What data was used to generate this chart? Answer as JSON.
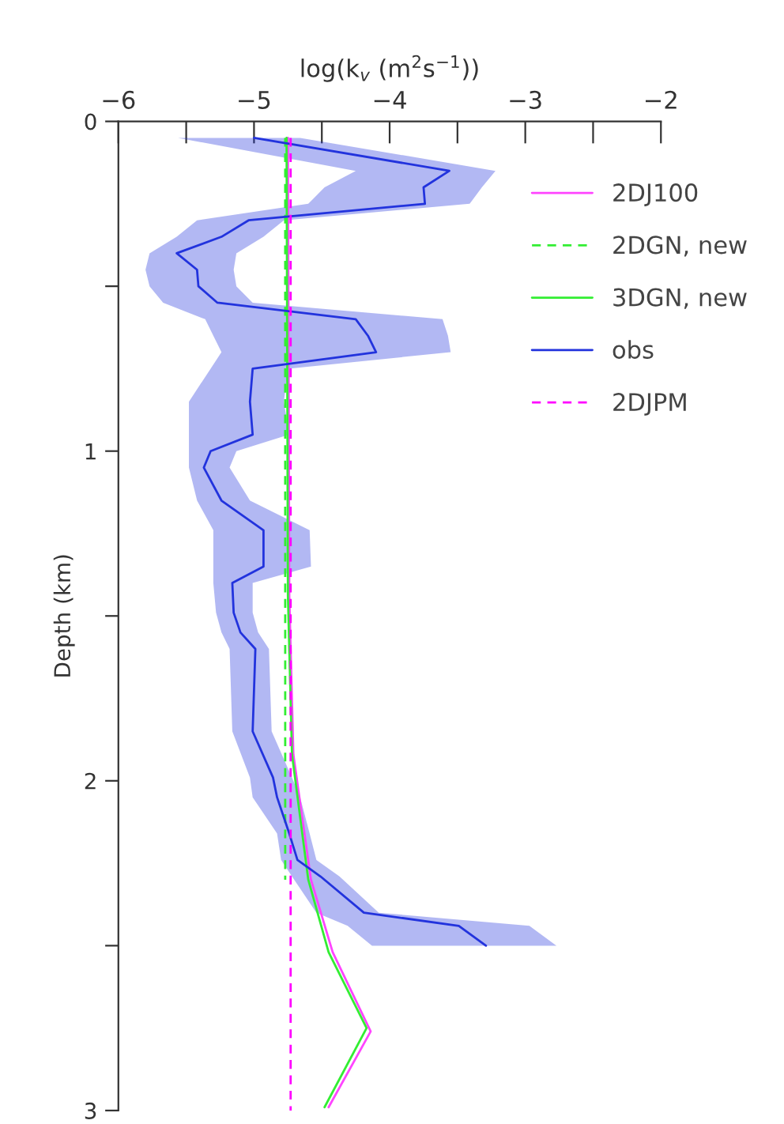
{
  "chart_data": {
    "type": "line",
    "orientation": "horizontal",
    "xlabel": "log(k$_{v}$ (m$^{2}$s$^{−1}$))",
    "ylabel": "Depth (km)",
    "xlim": [
      -6,
      -2
    ],
    "xticks": [
      -6,
      {
        "value": -5.5,
        "label": null
      },
      -5,
      {
        "value": -4.5,
        "label": null
      },
      -4,
      {
        "value": -3.5,
        "label": null
      },
      -3,
      {
        "value": -2.5,
        "label": null
      },
      -2
    ],
    "ylim": [
      3,
      0
    ],
    "yticks": [
      0,
      {
        "value": 0.5,
        "label": null
      },
      1,
      {
        "value": 1.5,
        "label": null
      },
      2,
      {
        "value": 2.5,
        "label": null
      },
      3
    ],
    "grid": false,
    "legend": "right",
    "series": [
      {
        "name": "2DJ100",
        "color": "#ff44ff",
        "line_style": "solid",
        "values": [
          -4.75,
          -4.74,
          -4.71,
          -4.58,
          -4.42,
          -4.14,
          -4.45
        ],
        "x": [
          0.05,
          1.44,
          1.92,
          2.3,
          2.52,
          2.76,
          2.99
        ]
      },
      {
        "name": "2DGN, new",
        "color": "#33ee33",
        "line_style": "dashed",
        "values": [
          -4.77,
          -4.77
        ],
        "x": [
          0.05,
          2.3
        ]
      },
      {
        "name": "3DGN, new",
        "color": "#33ee33",
        "line_style": "solid",
        "values": [
          -4.76,
          -4.75,
          -4.72,
          -4.6,
          -4.45,
          -4.17,
          -4.48
        ],
        "x": [
          0.05,
          1.44,
          1.92,
          2.3,
          2.52,
          2.75,
          2.99
        ]
      },
      {
        "name": "obs",
        "color": "#2233dd",
        "line_style": "solid",
        "values": [
          -5.0,
          -3.56,
          -3.75,
          -3.74,
          -5.04,
          -5.24,
          -5.57,
          -5.42,
          -5.41,
          -5.27,
          -4.25,
          -4.16,
          -4.1,
          -5.01,
          -5.03,
          -5.01,
          -5.32,
          -5.37,
          -5.24,
          -4.93,
          -4.93,
          -5.16,
          -5.15,
          -5.1,
          -4.99,
          -5.01,
          -4.86,
          -4.83,
          -4.74,
          -4.68,
          -4.51,
          -4.19,
          -3.49,
          -3.29
        ],
        "x": [
          0.05,
          0.15,
          0.2,
          0.25,
          0.3,
          0.35,
          0.4,
          0.45,
          0.5,
          0.55,
          0.6,
          0.65,
          0.7,
          0.75,
          0.85,
          0.95,
          1.0,
          1.05,
          1.15,
          1.24,
          1.35,
          1.4,
          1.49,
          1.55,
          1.6,
          1.85,
          1.99,
          2.05,
          2.16,
          2.24,
          2.29,
          2.4,
          2.44,
          2.5
        ],
        "lower": [
          -5.56,
          -4.25,
          -4.48,
          -4.6,
          -5.42,
          -5.57,
          -5.77,
          -5.8,
          -5.77,
          -5.67,
          -5.36,
          -5.3,
          -5.24,
          -5.32,
          -5.48,
          -5.48,
          -5.48,
          -5.48,
          -5.42,
          -5.3,
          -5.3,
          -5.3,
          -5.28,
          -5.24,
          -5.18,
          -5.16,
          -5.03,
          -5.01,
          -4.83,
          -4.8,
          -4.72,
          -4.54,
          -4.31,
          -4.13
        ],
        "upper": [
          -4.66,
          -3.22,
          -3.32,
          -3.41,
          -4.78,
          -4.93,
          -5.13,
          -5.15,
          -5.13,
          -5.01,
          -3.61,
          -3.57,
          -3.55,
          -4.75,
          -4.78,
          -4.74,
          -5.13,
          -5.18,
          -5.03,
          -4.59,
          -4.58,
          -5.01,
          -5.01,
          -4.97,
          -4.89,
          -4.87,
          -4.72,
          -4.66,
          -4.59,
          -4.54,
          -4.37,
          -4.08,
          -2.97,
          -2.77
        ]
      },
      {
        "name": "2DJPM",
        "color": "#ff00ff",
        "line_style": "dashed",
        "values": [
          -4.73,
          -4.73
        ],
        "x": [
          0.05,
          3.0
        ]
      }
    ]
  }
}
